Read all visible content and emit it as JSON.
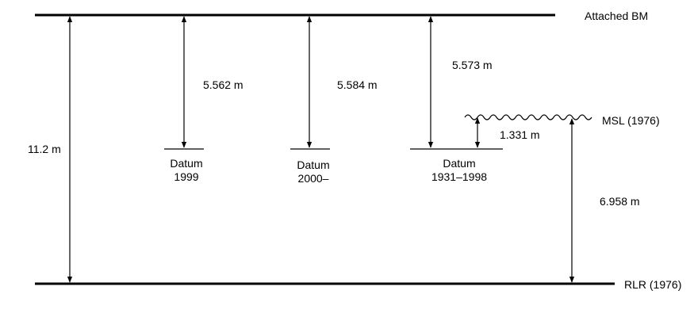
{
  "levels": {
    "attached_bm": "Attached BM",
    "msl": "MSL (1976)",
    "rlr": "RLR (1976)"
  },
  "datums": [
    {
      "line1": "Datum",
      "line2": "1999",
      "offset": "5.562 m"
    },
    {
      "line1": "Datum",
      "line2": "2000–",
      "offset": "5.584 m"
    },
    {
      "line1": "Datum",
      "line2": "1931–1998",
      "offset": "5.573 m"
    }
  ],
  "dimensions": {
    "bm_to_rlr": "11.2 m",
    "msl_above_datum": "1.331 m",
    "msl_to_rlr": "6.958 m"
  }
}
